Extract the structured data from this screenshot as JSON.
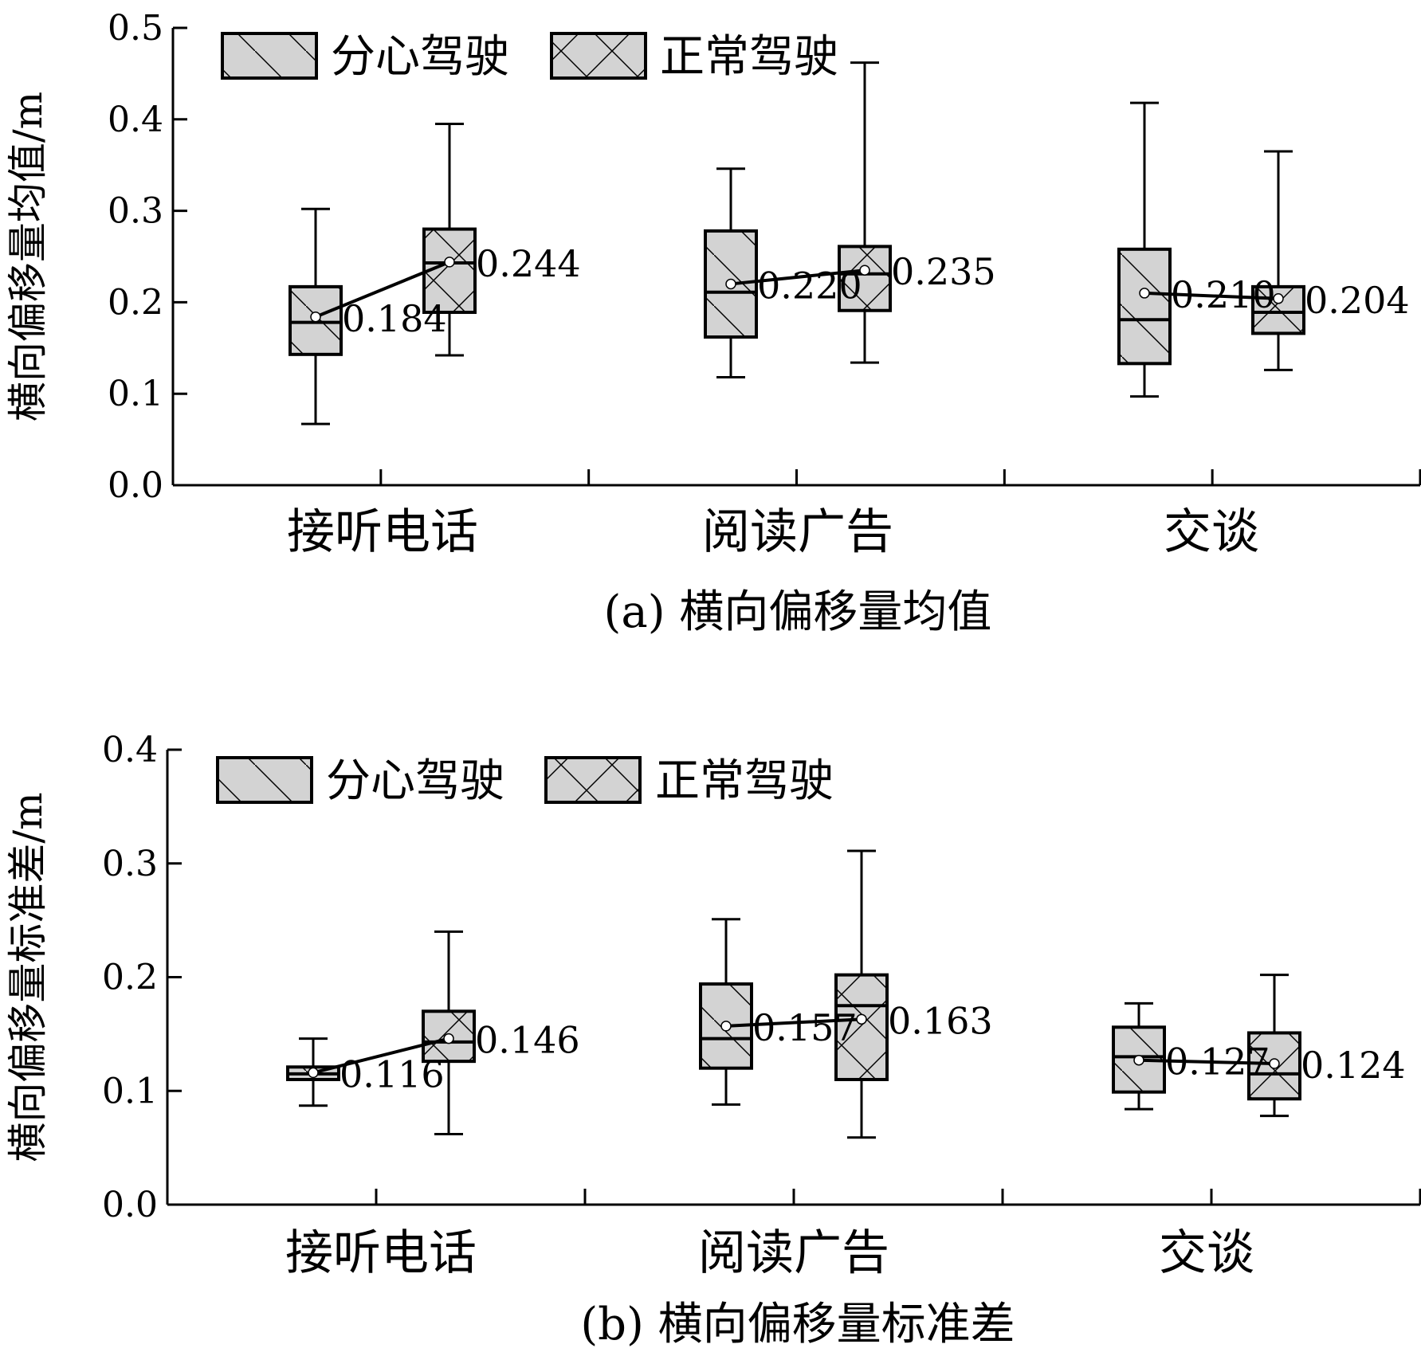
{
  "legend": {
    "distracted": "分心驾驶",
    "normal": "正常驾驶"
  },
  "colors": {
    "box_fill": "#d3d3d3",
    "stroke": "#000000",
    "mean_marker": "#ffffff"
  },
  "chart_data": [
    {
      "type": "box",
      "title": "(a) 横向偏移量均值",
      "ylabel": "横向偏移量均值/m",
      "ylim": [
        0,
        0.5
      ],
      "yticks": [
        "0.0",
        "0.1",
        "0.2",
        "0.3",
        "0.4",
        "0.5"
      ],
      "categories": [
        "接听电话",
        "阅读广告",
        "交谈"
      ],
      "grid": false,
      "legend_position": "top-left",
      "series": [
        {
          "name": "分心驾驶",
          "hatch": "diagonal",
          "boxes": [
            {
              "min": 0.067,
              "q1": 0.143,
              "median": 0.178,
              "q3": 0.217,
              "max": 0.302,
              "mean": 0.184,
              "mean_label": "0.184"
            },
            {
              "min": 0.118,
              "q1": 0.162,
              "median": 0.211,
              "q3": 0.278,
              "max": 0.346,
              "mean": 0.22,
              "mean_label": "0.220"
            },
            {
              "min": 0.097,
              "q1": 0.133,
              "median": 0.181,
              "q3": 0.258,
              "max": 0.418,
              "mean": 0.21,
              "mean_label": "0.210"
            }
          ]
        },
        {
          "name": "正常驾驶",
          "hatch": "cross",
          "boxes": [
            {
              "min": 0.142,
              "q1": 0.189,
              "median": 0.243,
              "q3": 0.28,
              "max": 0.395,
              "mean": 0.244,
              "mean_label": "0.244"
            },
            {
              "min": 0.134,
              "q1": 0.191,
              "median": 0.231,
              "q3": 0.261,
              "max": 0.462,
              "mean": 0.235,
              "mean_label": "0.235"
            },
            {
              "min": 0.126,
              "q1": 0.166,
              "median": 0.189,
              "q3": 0.217,
              "max": 0.365,
              "mean": 0.204,
              "mean_label": "0.204"
            }
          ]
        }
      ]
    },
    {
      "type": "box",
      "title": "(b) 横向偏移量标准差",
      "ylabel": "横向偏移量标准差/m",
      "ylim": [
        0,
        0.4
      ],
      "yticks": [
        "0.0",
        "0.1",
        "0.2",
        "0.3",
        "0.4"
      ],
      "categories": [
        "接听电话",
        "阅读广告",
        "交谈"
      ],
      "grid": false,
      "legend_position": "top-left",
      "series": [
        {
          "name": "分心驾驶",
          "hatch": "diagonal",
          "boxes": [
            {
              "min": 0.087,
              "q1": 0.11,
              "median": 0.115,
              "q3": 0.121,
              "max": 0.146,
              "mean": 0.116,
              "mean_label": "0.116"
            },
            {
              "min": 0.088,
              "q1": 0.12,
              "median": 0.146,
              "q3": 0.194,
              "max": 0.251,
              "mean": 0.157,
              "mean_label": "0.157"
            },
            {
              "min": 0.084,
              "q1": 0.099,
              "median": 0.13,
              "q3": 0.156,
              "max": 0.177,
              "mean": 0.127,
              "mean_label": "0.127"
            }
          ]
        },
        {
          "name": "正常驾驶",
          "hatch": "cross",
          "boxes": [
            {
              "min": 0.062,
              "q1": 0.126,
              "median": 0.143,
              "q3": 0.17,
              "max": 0.24,
              "mean": 0.146,
              "mean_label": "0.146"
            },
            {
              "min": 0.059,
              "q1": 0.11,
              "median": 0.175,
              "q3": 0.202,
              "max": 0.311,
              "mean": 0.163,
              "mean_label": "0.163"
            },
            {
              "min": 0.078,
              "q1": 0.093,
              "median": 0.115,
              "q3": 0.151,
              "max": 0.202,
              "mean": 0.124,
              "mean_label": "0.124"
            }
          ]
        }
      ]
    }
  ]
}
